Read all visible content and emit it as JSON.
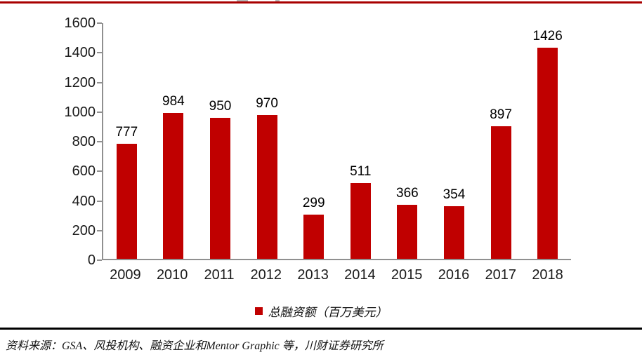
{
  "chart_data": {
    "type": "bar",
    "title": "",
    "categories": [
      "2009",
      "2010",
      "2011",
      "2012",
      "2013",
      "2014",
      "2015",
      "2016",
      "2017",
      "2018"
    ],
    "values": [
      777,
      984,
      950,
      970,
      299,
      511,
      366,
      354,
      897,
      1426
    ],
    "legend": "总融资额（百万美元）",
    "xlabel": "",
    "ylabel": "",
    "ylim": [
      0,
      1600
    ],
    "yticks": [
      0,
      200,
      400,
      600,
      800,
      1000,
      1200,
      1400,
      1600
    ],
    "grid": false,
    "legend_position": "bottom-center",
    "bar_color": "#C00000"
  },
  "colors": {
    "bar": "#C00000",
    "top_rule": "#A80000",
    "axis": "#909090",
    "separator": "#000000"
  },
  "source_note": "资料来源：GSA、风投机构、融资企业和Mentor Graphic 等，川财证券研究所"
}
